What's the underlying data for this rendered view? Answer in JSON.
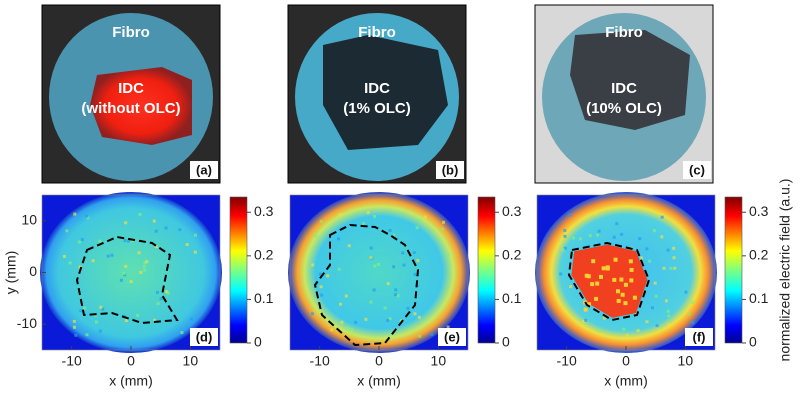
{
  "photos": [
    {
      "top": "Fibro",
      "center": "IDC",
      "detail": "(without OLC)",
      "tag": "(a)"
    },
    {
      "top": "Fibro",
      "center": "IDC",
      "detail": "(1% OLC)",
      "tag": "(b)"
    },
    {
      "top": "Fibro",
      "center": "IDC",
      "detail": "(10% OLC)",
      "tag": "(c)"
    }
  ],
  "maps": {
    "xlabel": "x (mm)",
    "ylabel": "y (mm)",
    "xlim": [
      -15,
      15
    ],
    "ylim": [
      -15,
      15
    ],
    "xticks": [
      -10,
      0,
      10
    ],
    "yticks": [
      -10,
      0,
      10
    ],
    "clim": [
      0,
      0.335
    ],
    "cticks": [
      0,
      0.1,
      0.2,
      0.3
    ],
    "clabel": "normalized electric field (a.u.)",
    "tags": [
      "(d)",
      "(e)",
      "(f)"
    ]
  }
}
